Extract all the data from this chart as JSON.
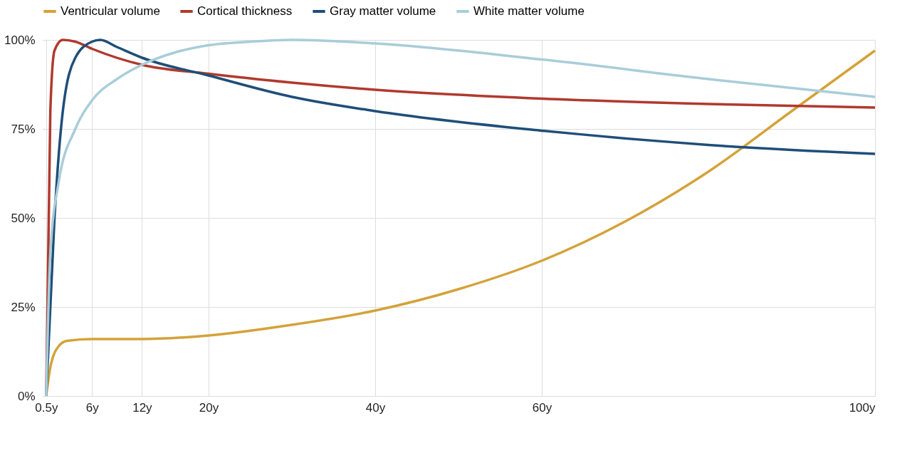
{
  "chart_data": {
    "type": "line",
    "xlim": [
      0,
      100
    ],
    "xticks": [
      {
        "value": 0.5,
        "label": "0.5y"
      },
      {
        "value": 6,
        "label": "6y"
      },
      {
        "value": 12,
        "label": "12y"
      },
      {
        "value": 20,
        "label": "20y"
      },
      {
        "value": 40,
        "label": "40y"
      },
      {
        "value": 60,
        "label": "60y"
      },
      {
        "value": 100,
        "label": "100y"
      }
    ],
    "ylim": [
      0,
      100
    ],
    "yticks": [
      {
        "value": 0,
        "label": "0%"
      },
      {
        "value": 25,
        "label": "25%"
      },
      {
        "value": 50,
        "label": "50%"
      },
      {
        "value": 75,
        "label": "75%"
      },
      {
        "value": 100,
        "label": "100%"
      }
    ],
    "grid": true,
    "legend": "top",
    "marker": "none",
    "line_style": "solid",
    "series": [
      {
        "name": "Ventricular volume",
        "color": "#d4a23a",
        "x": [
          0.5,
          1,
          2,
          3,
          6,
          12,
          20,
          30,
          40,
          50,
          60,
          70,
          80,
          90,
          100
        ],
        "values": [
          0,
          8,
          14,
          15.5,
          16,
          16,
          17,
          20,
          24,
          30,
          38,
          49,
          63,
          80,
          97
        ]
      },
      {
        "name": "Cortical thickness",
        "color": "#b03a2e",
        "x": [
          0.5,
          1,
          1.5,
          2.5,
          4,
          6,
          12,
          20,
          30,
          40,
          60,
          80,
          100
        ],
        "values": [
          0,
          80,
          97,
          100,
          99.5,
          97.5,
          93,
          90.5,
          88,
          86,
          83.5,
          82,
          81
        ]
      },
      {
        "name": "Gray matter volume",
        "color": "#1f4e79",
        "x": [
          0.5,
          1.5,
          2.5,
          4,
          6,
          7,
          9,
          12,
          20,
          30,
          40,
          60,
          80,
          100
        ],
        "values": [
          0,
          50,
          80,
          95,
          99.5,
          100,
          98,
          95,
          90,
          84,
          80,
          74.5,
          70.5,
          68
        ]
      },
      {
        "name": "White matter volume",
        "color": "#a8cdd9",
        "x": [
          0.5,
          1,
          2,
          4,
          6,
          9,
          12,
          16,
          20,
          25,
          30,
          40,
          60,
          80,
          100
        ],
        "values": [
          0,
          40,
          60,
          75,
          83,
          89,
          93,
          96.5,
          98.5,
          99.5,
          100,
          99,
          94.5,
          89,
          84
        ]
      }
    ]
  }
}
